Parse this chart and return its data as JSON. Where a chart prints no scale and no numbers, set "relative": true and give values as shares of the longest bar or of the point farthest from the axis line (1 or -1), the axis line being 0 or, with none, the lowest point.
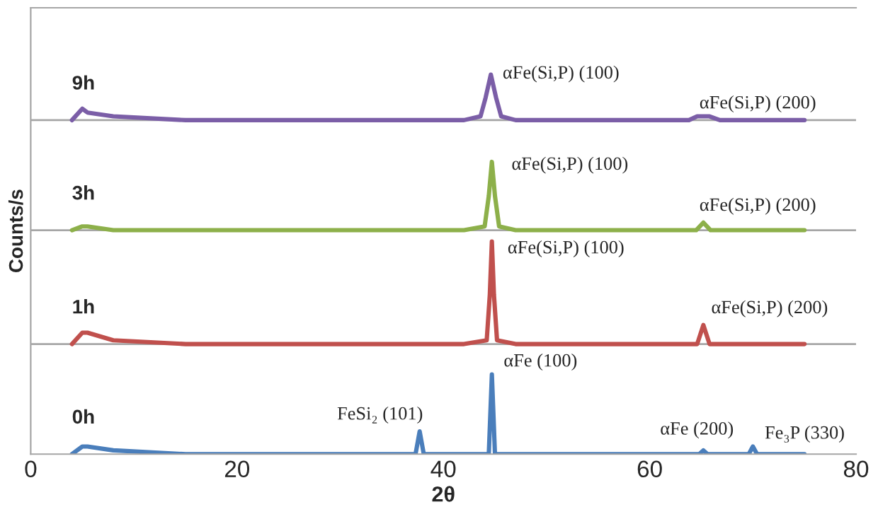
{
  "chart_data": {
    "type": "line",
    "relative": true,
    "xlabel": "2θ",
    "ylabel": "Counts/s",
    "xlim": [
      0,
      80
    ],
    "xticks": [
      0,
      20,
      40,
      60,
      80
    ],
    "grid": false,
    "legend": false,
    "marker": "none",
    "line_style": "solid",
    "series": [
      {
        "name": "9h",
        "color": "#7b5ea7",
        "x": [
          4,
          5,
          5.5,
          8,
          15,
          30,
          42,
          43.6,
          44.1,
          44.6,
          45.1,
          45.6,
          47,
          55,
          63.8,
          64.6,
          65.2,
          65.8,
          66.8,
          75
        ],
        "values": [
          0.88,
          0.91,
          0.9,
          0.89,
          0.88,
          0.88,
          0.88,
          0.89,
          0.94,
          1.0,
          0.94,
          0.89,
          0.88,
          0.88,
          0.88,
          0.89,
          0.89,
          0.89,
          0.88,
          0.88
        ]
      },
      {
        "name": "3h",
        "color": "#8db04a",
        "x": [
          4,
          5,
          5.5,
          8,
          15,
          30,
          42,
          44.0,
          44.4,
          44.7,
          45.0,
          45.4,
          47,
          55,
          64.5,
          65.2,
          65.9,
          75
        ],
        "values": [
          0.59,
          0.6,
          0.6,
          0.59,
          0.59,
          0.59,
          0.59,
          0.6,
          0.68,
          0.77,
          0.68,
          0.6,
          0.59,
          0.59,
          0.59,
          0.61,
          0.59,
          0.59
        ]
      },
      {
        "name": "1h",
        "color": "#c0504d",
        "x": [
          4,
          5,
          5.5,
          8,
          15,
          30,
          42,
          44.2,
          44.5,
          44.7,
          44.9,
          45.2,
          47,
          55,
          64.6,
          65.2,
          65.8,
          75
        ],
        "values": [
          0.29,
          0.32,
          0.32,
          0.3,
          0.29,
          0.29,
          0.29,
          0.3,
          0.42,
          0.56,
          0.42,
          0.3,
          0.29,
          0.29,
          0.29,
          0.34,
          0.29,
          0.29
        ]
      },
      {
        "name": "0h",
        "color": "#4a7ebb",
        "x": [
          4,
          5,
          5.5,
          8,
          15,
          30,
          37.3,
          37.7,
          38.1,
          44.4,
          44.7,
          45.0,
          55,
          64.8,
          65.2,
          65.6,
          69.6,
          70,
          70.4,
          75
        ],
        "values": [
          0,
          0.02,
          0.02,
          0.01,
          0,
          0,
          0,
          0.06,
          0,
          0,
          0.21,
          0,
          0,
          0,
          0.01,
          0,
          0,
          0.02,
          0,
          0
        ]
      }
    ],
    "ref_lines": [
      {
        "axis": "y",
        "value": 0.29,
        "color": "#a6a6a6"
      },
      {
        "axis": "y",
        "value": 0.59,
        "color": "#a6a6a6"
      },
      {
        "axis": "y",
        "value": 0.88,
        "color": "#a6a6a6"
      }
    ],
    "annotations": [
      {
        "text": "αFe(Si,P) (100)",
        "x": 44.6,
        "y": 1.0
      },
      {
        "text": "αFe(Si,P) (200)",
        "x": 65.2,
        "y": 0.89
      },
      {
        "text": "αFe(Si,P) (100)",
        "x": 44.7,
        "y": 0.77
      },
      {
        "text": "αFe(Si,P) (200)",
        "x": 65.2,
        "y": 0.61
      },
      {
        "text": "αFe(Si,P) (100)",
        "x": 44.7,
        "y": 0.56
      },
      {
        "text": "αFe(Si,P) (200)",
        "x": 65.2,
        "y": 0.34
      },
      {
        "text": "αFe (100)",
        "x": 44.7,
        "y": 0.21
      },
      {
        "text": "FeSi₂ (101)",
        "x": 37.7,
        "y": 0.06
      },
      {
        "text": "αFe (200)",
        "x": 65.2,
        "y": 0.01
      },
      {
        "text": "Fe₃P (330)",
        "x": 70,
        "y": 0.02
      }
    ]
  }
}
